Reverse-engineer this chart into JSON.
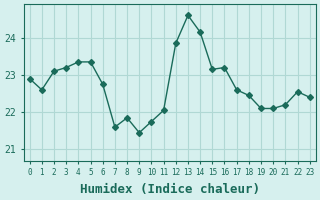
{
  "x": [
    0,
    1,
    2,
    3,
    4,
    5,
    6,
    7,
    8,
    9,
    10,
    11,
    12,
    13,
    14,
    15,
    16,
    17,
    18,
    19,
    20,
    21,
    22,
    23
  ],
  "y": [
    22.9,
    22.6,
    23.1,
    23.2,
    23.35,
    23.35,
    22.75,
    21.6,
    21.85,
    21.45,
    21.75,
    22.05,
    23.85,
    24.6,
    24.15,
    23.15,
    23.2,
    22.6,
    22.45,
    22.1,
    22.1,
    22.2,
    22.55,
    22.4
  ],
  "line_color": "#1a6b5a",
  "marker": "D",
  "marker_size": 3,
  "bg_color": "#d6f0ee",
  "grid_color": "#b0d8d4",
  "axis_color": "#1a6b5a",
  "xlabel": "Humidex (Indice chaleur)",
  "xlabel_fontsize": 9,
  "ylabel_ticks": [
    21,
    22,
    23,
    24
  ],
  "xlim": [
    -0.5,
    23.5
  ],
  "ylim": [
    20.7,
    24.9
  ],
  "xtick_labels": [
    "0",
    "1",
    "2",
    "3",
    "4",
    "5",
    "6",
    "7",
    "8",
    "9",
    "10",
    "11",
    "12",
    "13",
    "14",
    "15",
    "16",
    "17",
    "18",
    "19",
    "20",
    "21",
    "22",
    "23"
  ]
}
